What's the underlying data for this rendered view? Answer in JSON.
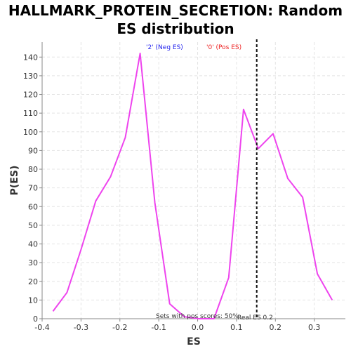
{
  "chart_data": {
    "type": "line",
    "title": "HALLMARK_PROTEIN_SECRETION: Random ES distribution",
    "xlabel": "ES",
    "ylabel": "P(ES)",
    "xlim": [
      -0.4,
      0.38
    ],
    "ylim": [
      0,
      148
    ],
    "xticks": [
      -0.4,
      -0.3,
      -0.2,
      -0.1,
      0.0,
      0.1,
      0.2,
      0.3
    ],
    "xtick_labels": [
      "-0.4",
      "-0.3",
      "-0.2",
      "-0.1",
      "0.0",
      "0.1",
      "0.2",
      "0.3"
    ],
    "yticks": [
      0,
      10,
      20,
      30,
      40,
      50,
      60,
      70,
      80,
      90,
      100,
      110,
      120,
      130,
      140
    ],
    "yticks_labels": [
      "0",
      "10",
      "20",
      "30",
      "40",
      "50",
      "60",
      "70",
      "80",
      "90",
      "100",
      "110",
      "120",
      "130",
      "140"
    ],
    "grid": true,
    "series": [
      {
        "color": "#ee44ee",
        "x": [
          -0.372,
          -0.336,
          -0.3,
          -0.262,
          -0.224,
          -0.186,
          -0.148,
          -0.11,
          -0.072,
          -0.034,
          0.004,
          0.042,
          0.08,
          0.118,
          0.156,
          0.194,
          0.232,
          0.27,
          0.308,
          0.346
        ],
        "y": [
          4,
          14,
          37,
          63,
          76,
          97,
          142,
          62,
          8,
          1,
          0,
          0,
          22,
          112,
          91,
          99,
          75,
          65,
          24,
          10
        ]
      }
    ],
    "real_es": 0.152,
    "annotations": {
      "neg_label": "'2' (Neg ES)",
      "pos_label": "'0' (Pos ES)",
      "neg_color": "#2020ee",
      "pos_color": "#ee2020",
      "sets_text": "Sets with pos scores: 50%",
      "real_es_text": "Real ES 0.2"
    }
  }
}
